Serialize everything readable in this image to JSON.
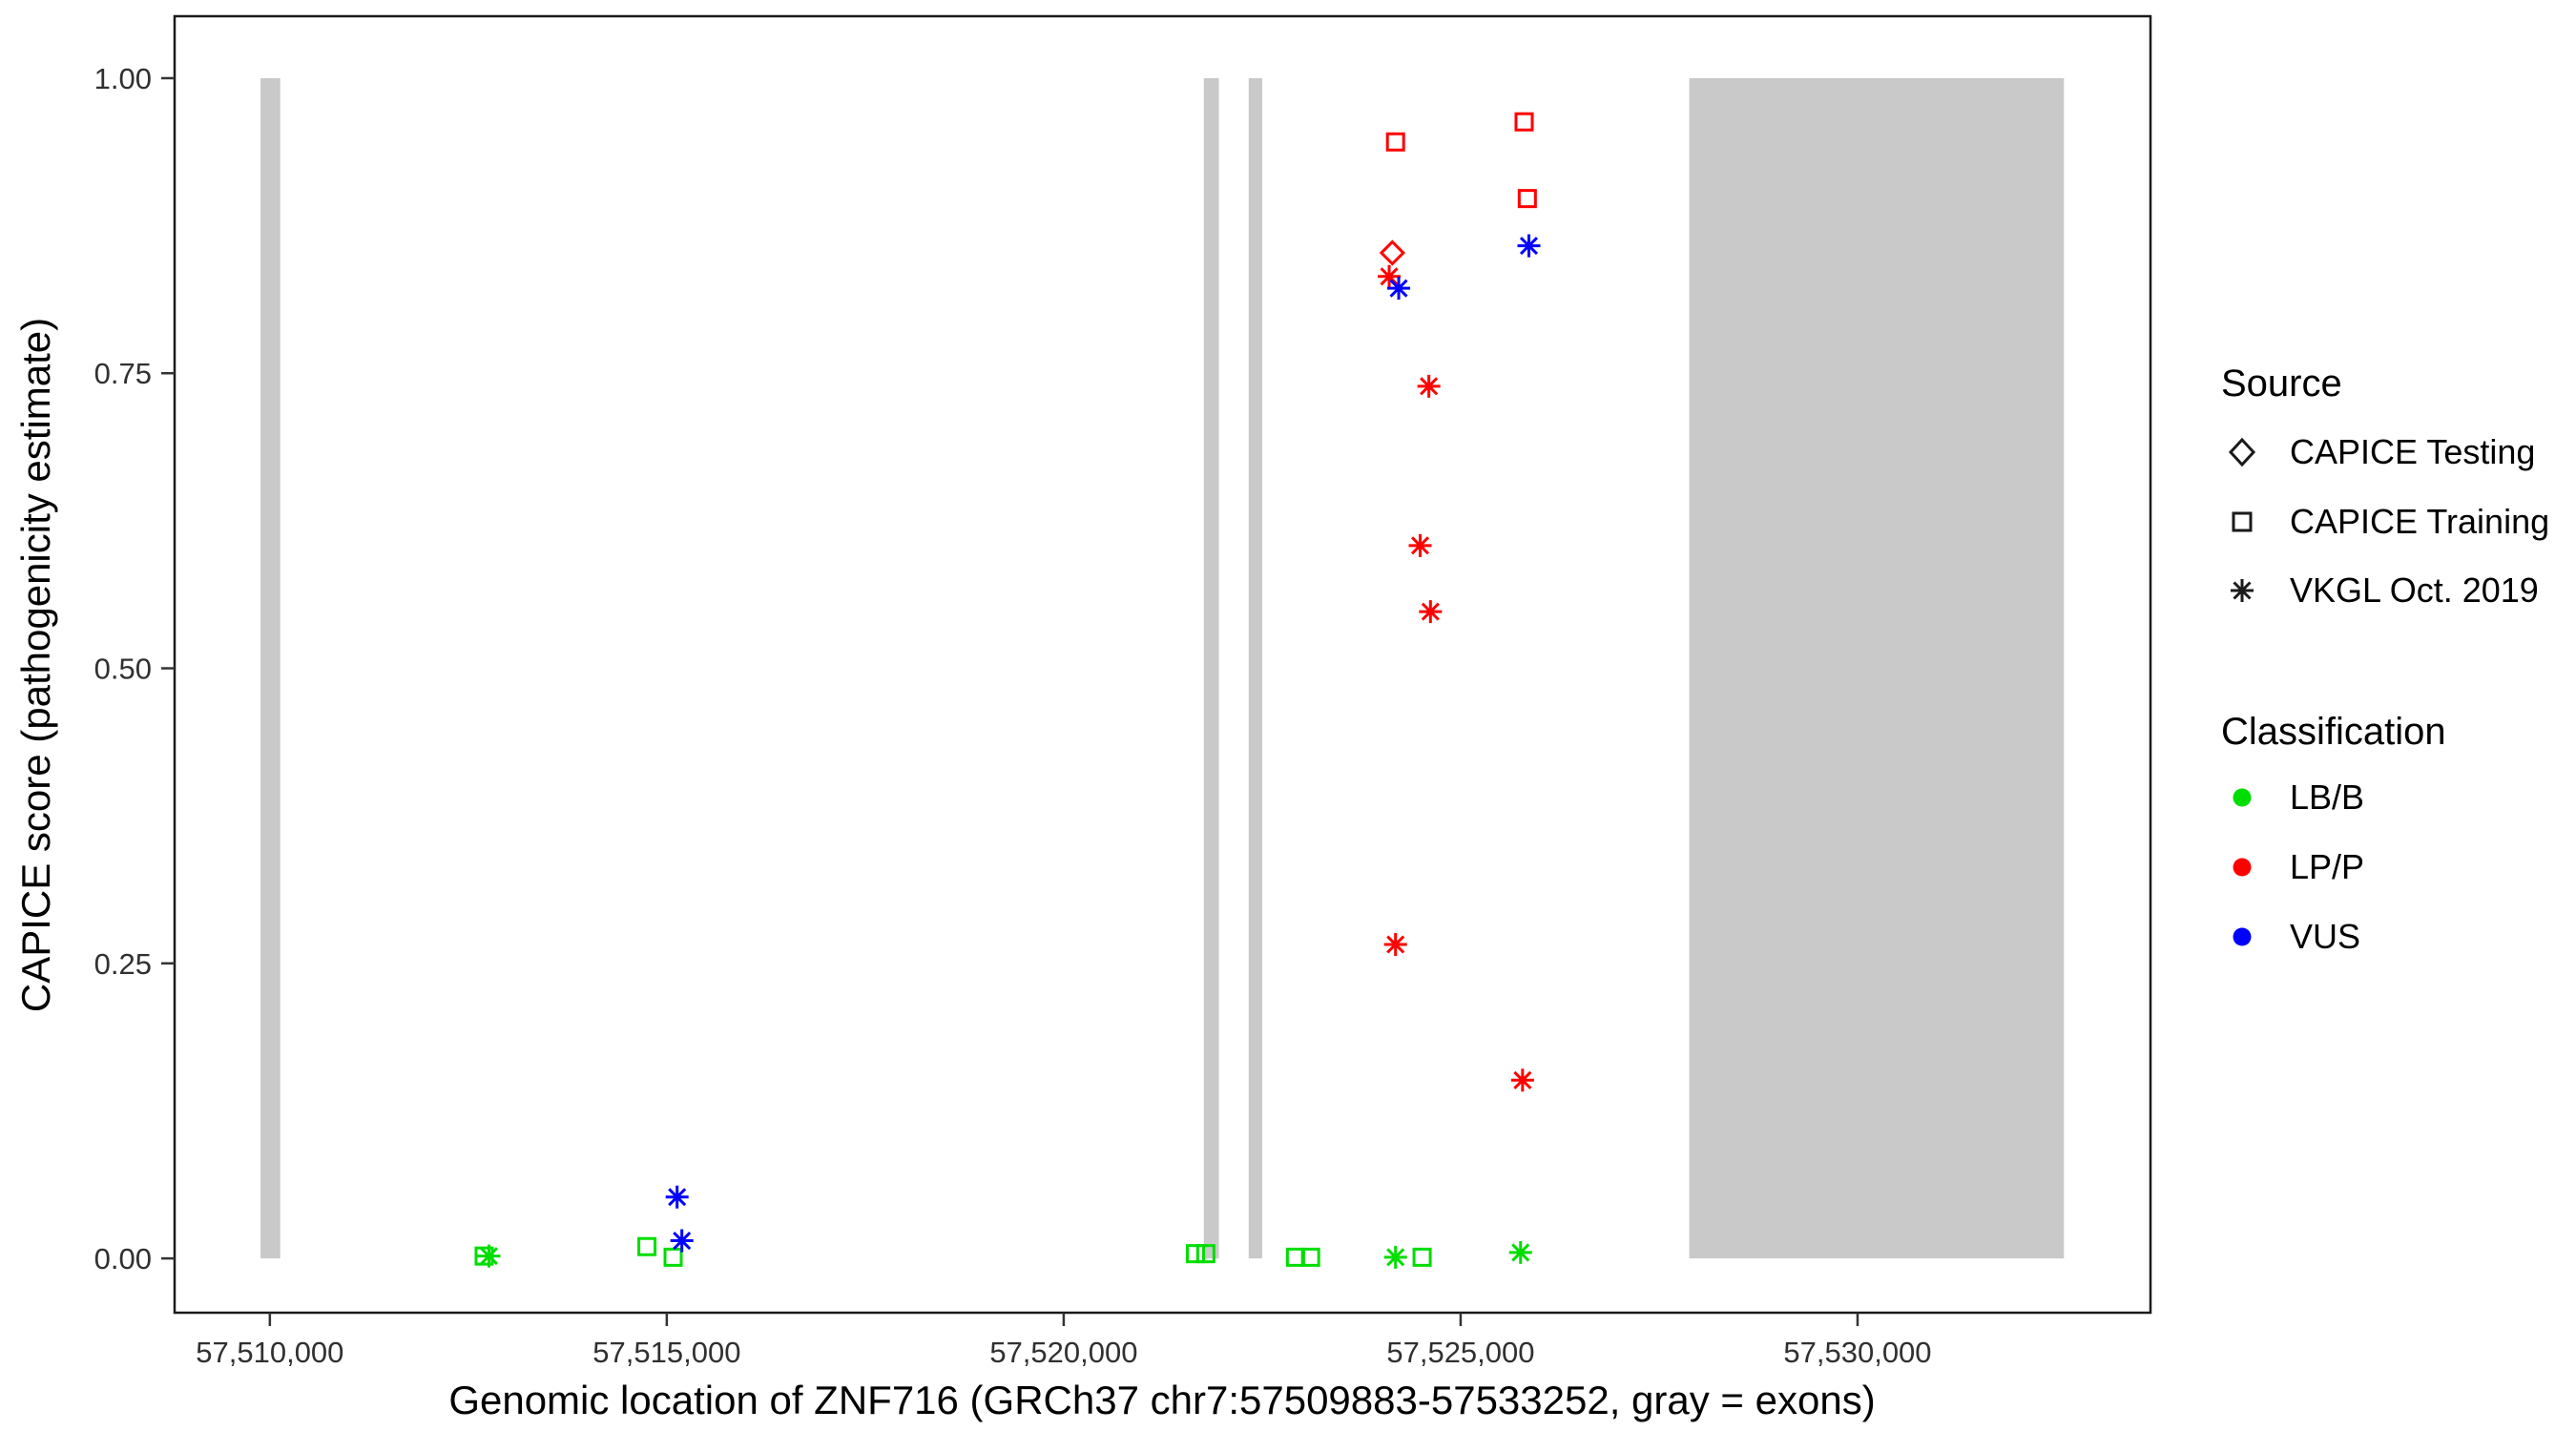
{
  "chart_data": {
    "type": "scatter",
    "title": "",
    "xlabel": "Genomic location of ZNF716 (GRCh37 chr7:57509883-57533252, gray = exons)",
    "ylabel": "CAPICE score (pathogenicity estimate)",
    "x_domain": [
      57508800,
      57533690
    ],
    "y_domain": [
      -0.046,
      1.0525
    ],
    "x_ticks": [
      {
        "value": 57510000,
        "label": "57,510,000"
      },
      {
        "value": 57515000,
        "label": "57,515,000"
      },
      {
        "value": 57520000,
        "label": "57,520,000"
      },
      {
        "value": 57525000,
        "label": "57,525,000"
      },
      {
        "value": 57530000,
        "label": "57,530,000"
      }
    ],
    "y_ticks": [
      {
        "value": 0.0,
        "label": "0.00"
      },
      {
        "value": 0.25,
        "label": "0.25"
      },
      {
        "value": 0.5,
        "label": "0.50"
      },
      {
        "value": 0.75,
        "label": "0.75"
      },
      {
        "value": 1.0,
        "label": "1.00"
      }
    ],
    "grid": "off",
    "exon_color": "#c9c9c9",
    "exons": [
      {
        "start": 57509883,
        "end": 57510130,
        "y0": 0.0,
        "y1": 1.0
      },
      {
        "start": 57521765,
        "end": 57521955,
        "y0": 0.0,
        "y1": 1.0
      },
      {
        "start": 57522330,
        "end": 57522500,
        "y0": 0.0,
        "y1": 1.0
      },
      {
        "start": 57527880,
        "end": 57532600,
        "y0": 0.0,
        "y1": 1.0
      }
    ],
    "classification_colors": {
      "LB/B": "#00dd00",
      "LP/P": "#ff0000",
      "VUS": "#0000ff"
    },
    "source_shapes": {
      "CAPICE Testing": "diamond",
      "CAPICE Training": "square",
      "VKGL Oct. 2019": "asterisk"
    },
    "points": [
      {
        "x": 57512700,
        "y": 0.002,
        "source": "CAPICE Training",
        "classification": "LB/B"
      },
      {
        "x": 57512760,
        "y": 0.002,
        "source": "VKGL Oct. 2019",
        "classification": "LB/B"
      },
      {
        "x": 57514750,
        "y": 0.01,
        "source": "CAPICE Training",
        "classification": "LB/B"
      },
      {
        "x": 57515080,
        "y": 0.001,
        "source": "CAPICE Training",
        "classification": "LB/B"
      },
      {
        "x": 57515130,
        "y": 0.052,
        "source": "VKGL Oct. 2019",
        "classification": "VUS"
      },
      {
        "x": 57515190,
        "y": 0.015,
        "source": "VKGL Oct. 2019",
        "classification": "VUS"
      },
      {
        "x": 57521660,
        "y": 0.004,
        "source": "CAPICE Training",
        "classification": "LB/B"
      },
      {
        "x": 57521790,
        "y": 0.004,
        "source": "CAPICE Training",
        "classification": "LB/B"
      },
      {
        "x": 57522920,
        "y": 0.001,
        "source": "CAPICE Training",
        "classification": "LB/B"
      },
      {
        "x": 57523110,
        "y": 0.001,
        "source": "CAPICE Training",
        "classification": "LB/B"
      },
      {
        "x": 57524180,
        "y": 0.001,
        "source": "VKGL Oct. 2019",
        "classification": "LB/B"
      },
      {
        "x": 57524515,
        "y": 0.001,
        "source": "CAPICE Training",
        "classification": "LB/B"
      },
      {
        "x": 57525755,
        "y": 0.005,
        "source": "VKGL Oct. 2019",
        "classification": "LB/B"
      },
      {
        "x": 57524180,
        "y": 0.946,
        "source": "CAPICE Training",
        "classification": "LP/P"
      },
      {
        "x": 57525800,
        "y": 0.963,
        "source": "CAPICE Training",
        "classification": "LP/P"
      },
      {
        "x": 57525840,
        "y": 0.898,
        "source": "CAPICE Training",
        "classification": "LP/P"
      },
      {
        "x": 57524140,
        "y": 0.852,
        "source": "CAPICE Testing",
        "classification": "LP/P"
      },
      {
        "x": 57524100,
        "y": 0.832,
        "source": "VKGL Oct. 2019",
        "classification": "LP/P"
      },
      {
        "x": 57524220,
        "y": 0.822,
        "source": "VKGL Oct. 2019",
        "classification": "VUS"
      },
      {
        "x": 57525860,
        "y": 0.858,
        "source": "VKGL Oct. 2019",
        "classification": "VUS"
      },
      {
        "x": 57524600,
        "y": 0.739,
        "source": "VKGL Oct. 2019",
        "classification": "LP/P"
      },
      {
        "x": 57524490,
        "y": 0.604,
        "source": "VKGL Oct. 2019",
        "classification": "LP/P"
      },
      {
        "x": 57524620,
        "y": 0.548,
        "source": "VKGL Oct. 2019",
        "classification": "LP/P"
      },
      {
        "x": 57524180,
        "y": 0.266,
        "source": "VKGL Oct. 2019",
        "classification": "LP/P"
      },
      {
        "x": 57525780,
        "y": 0.151,
        "source": "VKGL Oct. 2019",
        "classification": "LP/P"
      }
    ],
    "legend": {
      "position": "right",
      "source": {
        "title": "Source",
        "items": [
          {
            "shape": "diamond",
            "label": "CAPICE Testing"
          },
          {
            "shape": "square",
            "label": "CAPICE Training"
          },
          {
            "shape": "asterisk",
            "label": "VKGL Oct. 2019"
          }
        ]
      },
      "classification": {
        "title": "Classification",
        "items": [
          {
            "color": "#00dd00",
            "label": "LB/B"
          },
          {
            "color": "#ff0000",
            "label": "LP/P"
          },
          {
            "color": "#0000ff",
            "label": "VUS"
          }
        ]
      }
    }
  }
}
